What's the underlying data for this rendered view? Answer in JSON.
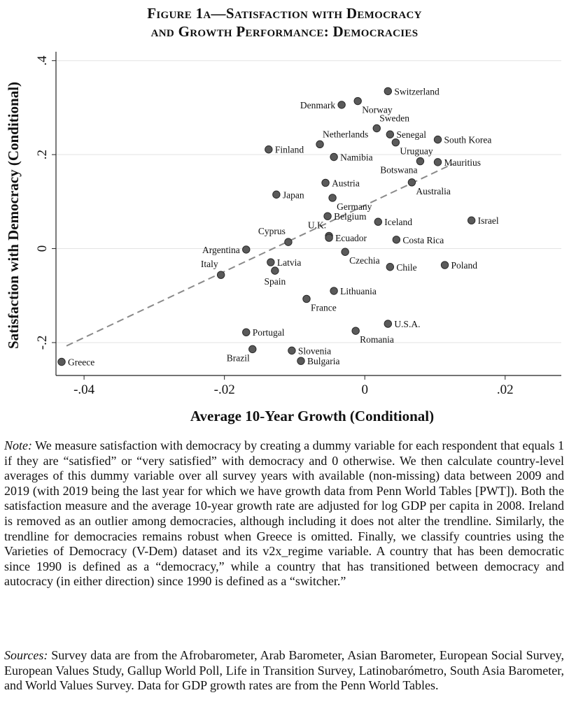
{
  "title_line1": "Figure 1a—Satisfaction with Democracy",
  "title_line2": "and Growth Performance: Democracies",
  "note_label": "Note:",
  "note_text": " We measure satisfaction with democracy by creating a dummy variable for each respondent that equals 1 if they are “satisfied” or “very satisfied” with democracy and 0 otherwise. We then calculate country-level averages of this dummy variable over all survey years with available (non-missing) data between 2009 and 2019 (with 2019 being the last year for which we have growth data from Penn World Tables [PWT]). Both the satisfaction measure and the average 10-year growth rate are adjusted for log GDP per capita in 2008. Ireland is removed as an outlier among democracies, although including it does not alter the trendline. Similarly, the trendline for democracies remains robust when Greece is omitted. Finally, we classify countries using the Varieties of Democracy (V-Dem) dataset and its v2x_regime variable. A country that has been democratic since 1990 is defined as a “democracy,” while a country that has transitioned between democracy and autocracy (in either direction) since 1990 is defined as a “switcher.”",
  "sources_label": "Sources:",
  "sources_text": " Survey data are from the Afrobarometer, Arab Barometer, Asian Barometer, European Social Survey, European Values Study, Gallup World Poll, Life in Transition Survey, Latinobarómetro, South Asia Barometer, and World Values Survey. Data for GDP growth rates are from the Penn World Tables.",
  "chart_data": {
    "type": "scatter",
    "xlabel": "Average 10-Year Growth (Conditional)",
    "ylabel": "Satisfaction with Democracy (Conditional)",
    "xlim": [
      -0.044,
      0.028
    ],
    "ylim": [
      -0.27,
      0.41
    ],
    "xticks": [
      -0.04,
      -0.02,
      0,
      0.02
    ],
    "xtick_labels": [
      "-.04",
      "-.02",
      "0",
      ".02"
    ],
    "yticks": [
      -0.2,
      0,
      0.2,
      0.4
    ],
    "ytick_labels": [
      "-.2",
      "0",
      ".2",
      ".4"
    ],
    "grid": "horizontal",
    "trendline": {
      "x": [
        -0.0425,
        0.0125
      ],
      "y": [
        -0.207,
        0.18
      ],
      "style": "dashed"
    },
    "point_color": "#5a5a5a",
    "points": [
      {
        "label": "Switzerland",
        "x": 0.0033,
        "y": 0.335,
        "pos": "right"
      },
      {
        "label": "Norway",
        "x": -0.001,
        "y": 0.314,
        "pos": "below-right"
      },
      {
        "label": "Denmark",
        "x": -0.0033,
        "y": 0.306,
        "pos": "left"
      },
      {
        "label": "Sweden",
        "x": 0.0017,
        "y": 0.256,
        "pos": "above-right"
      },
      {
        "label": "Senegal",
        "x": 0.0036,
        "y": 0.243,
        "pos": "right"
      },
      {
        "label": "Uruguay",
        "x": 0.0044,
        "y": 0.226,
        "pos": "below-right"
      },
      {
        "label": "South Korea",
        "x": 0.0104,
        "y": 0.232,
        "pos": "right"
      },
      {
        "label": "Netherlands",
        "x": -0.0064,
        "y": 0.222,
        "pos": "above-right"
      },
      {
        "label": "Finland",
        "x": -0.0137,
        "y": 0.211,
        "pos": "right"
      },
      {
        "label": "Namibia",
        "x": -0.0044,
        "y": 0.195,
        "pos": "right"
      },
      {
        "label": "Botswana",
        "x": 0.0079,
        "y": 0.186,
        "pos": "below-left"
      },
      {
        "label": "Mauritius",
        "x": 0.0104,
        "y": 0.184,
        "pos": "right"
      },
      {
        "label": "Austria",
        "x": -0.0056,
        "y": 0.14,
        "pos": "right"
      },
      {
        "label": "Australia",
        "x": 0.0067,
        "y": 0.141,
        "pos": "below-right"
      },
      {
        "label": "Japan",
        "x": -0.0126,
        "y": 0.115,
        "pos": "right"
      },
      {
        "label": "Germany",
        "x": -0.0046,
        "y": 0.108,
        "pos": "below-right"
      },
      {
        "label": "Belgium",
        "x": -0.0053,
        "y": 0.069,
        "pos": "right"
      },
      {
        "label": "Iceland",
        "x": 0.0019,
        "y": 0.057,
        "pos": "right"
      },
      {
        "label": "Israel",
        "x": 0.0152,
        "y": 0.06,
        "pos": "right"
      },
      {
        "label": "U.K.",
        "x": -0.0051,
        "y": 0.027,
        "pos": "above-left"
      },
      {
        "label": "Ecuador",
        "x": -0.0051,
        "y": 0.023,
        "pos": "right"
      },
      {
        "label": "Cyprus",
        "x": -0.0109,
        "y": 0.014,
        "pos": "above-left"
      },
      {
        "label": "Costa Rica",
        "x": 0.0045,
        "y": 0.019,
        "pos": "right"
      },
      {
        "label": "Argentina",
        "x": -0.0169,
        "y": -0.002,
        "pos": "left"
      },
      {
        "label": "Czechia",
        "x": -0.0028,
        "y": -0.007,
        "pos": "below-right"
      },
      {
        "label": "Latvia",
        "x": -0.0134,
        "y": -0.029,
        "pos": "right"
      },
      {
        "label": "Poland",
        "x": 0.0114,
        "y": -0.035,
        "pos": "right"
      },
      {
        "label": "Chile",
        "x": 0.0036,
        "y": -0.039,
        "pos": "right"
      },
      {
        "label": "Spain",
        "x": -0.0128,
        "y": -0.047,
        "pos": "below"
      },
      {
        "label": "Italy",
        "x": -0.0205,
        "y": -0.056,
        "pos": "above-left"
      },
      {
        "label": "Lithuania",
        "x": -0.0044,
        "y": -0.09,
        "pos": "right"
      },
      {
        "label": "France",
        "x": -0.0083,
        "y": -0.107,
        "pos": "below-right"
      },
      {
        "label": "U.S.A.",
        "x": 0.0033,
        "y": -0.16,
        "pos": "right"
      },
      {
        "label": "Romania",
        "x": -0.0013,
        "y": -0.175,
        "pos": "below-right"
      },
      {
        "label": "Portugal",
        "x": -0.0169,
        "y": -0.178,
        "pos": "right"
      },
      {
        "label": "Brazil",
        "x": -0.016,
        "y": -0.214,
        "pos": "below-left"
      },
      {
        "label": "Slovenia",
        "x": -0.0104,
        "y": -0.217,
        "pos": "right"
      },
      {
        "label": "Bulgaria",
        "x": -0.0091,
        "y": -0.239,
        "pos": "right"
      },
      {
        "label": "Greece",
        "x": -0.0432,
        "y": -0.241,
        "pos": "right"
      }
    ]
  }
}
